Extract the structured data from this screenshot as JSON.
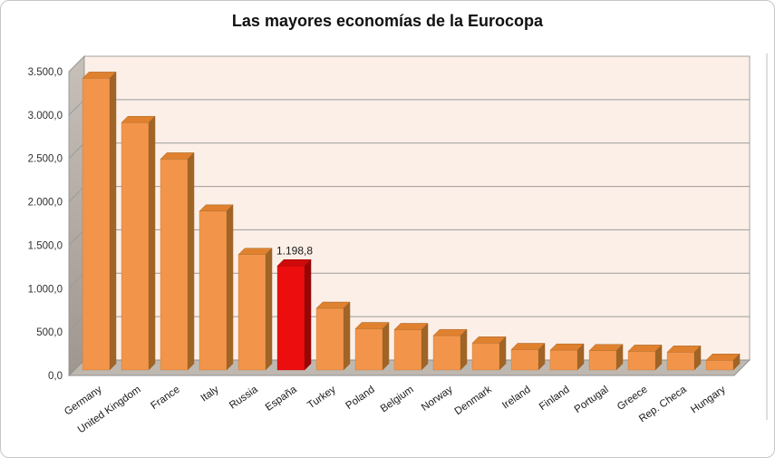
{
  "title": "Las mayores economías de la Eurocopa",
  "chart_data": {
    "type": "bar",
    "style": "3d-column",
    "title": "Las mayores economías de la Eurocopa",
    "categories": [
      "Germany",
      "United Kingdom",
      "France",
      "Italy",
      "Russia",
      "España",
      "Turkey",
      "Poland",
      "Belgium",
      "Norway",
      "Denmark",
      "Ireland",
      "Finland",
      "Portugal",
      "Greece",
      "Rep. Checa",
      "Hungary"
    ],
    "values": [
      3360,
      2850,
      2430,
      1830,
      1330,
      1198.8,
      710,
      475,
      465,
      395,
      310,
      235,
      228,
      222,
      215,
      205,
      112
    ],
    "highlight_index": 5,
    "data_labels": [
      {
        "category": "España",
        "label": "1.198,8"
      }
    ],
    "xlabel": "",
    "ylabel": "",
    "ylim": [
      0,
      3500
    ],
    "y_tick_step": 500,
    "y_tick_labels_top_to_bottom": [
      "3.500,0",
      "3.000,0",
      "2.500,0",
      "2.000,0",
      "1.500,0",
      "1.000,0",
      "500,0",
      "0,0"
    ],
    "grid": true,
    "legend_position": "none",
    "colors": {
      "bar_front": "#F2954B",
      "bar_top": "#E0812F",
      "bar_side": "#9F6426",
      "highlight_front": "#EC0E0E",
      "highlight_top": "#CE0A0A",
      "highlight_side": "#940707",
      "back_wall": "#FCEFE7",
      "gridline": "#9B9B9B",
      "floor": "#BFB8B1",
      "side_wall_light": "#C7C0BA",
      "side_wall_dark": "#9F978F",
      "edge": "#8E8E8E",
      "text": "#1A1A1A",
      "tick_text": "#303030"
    }
  }
}
